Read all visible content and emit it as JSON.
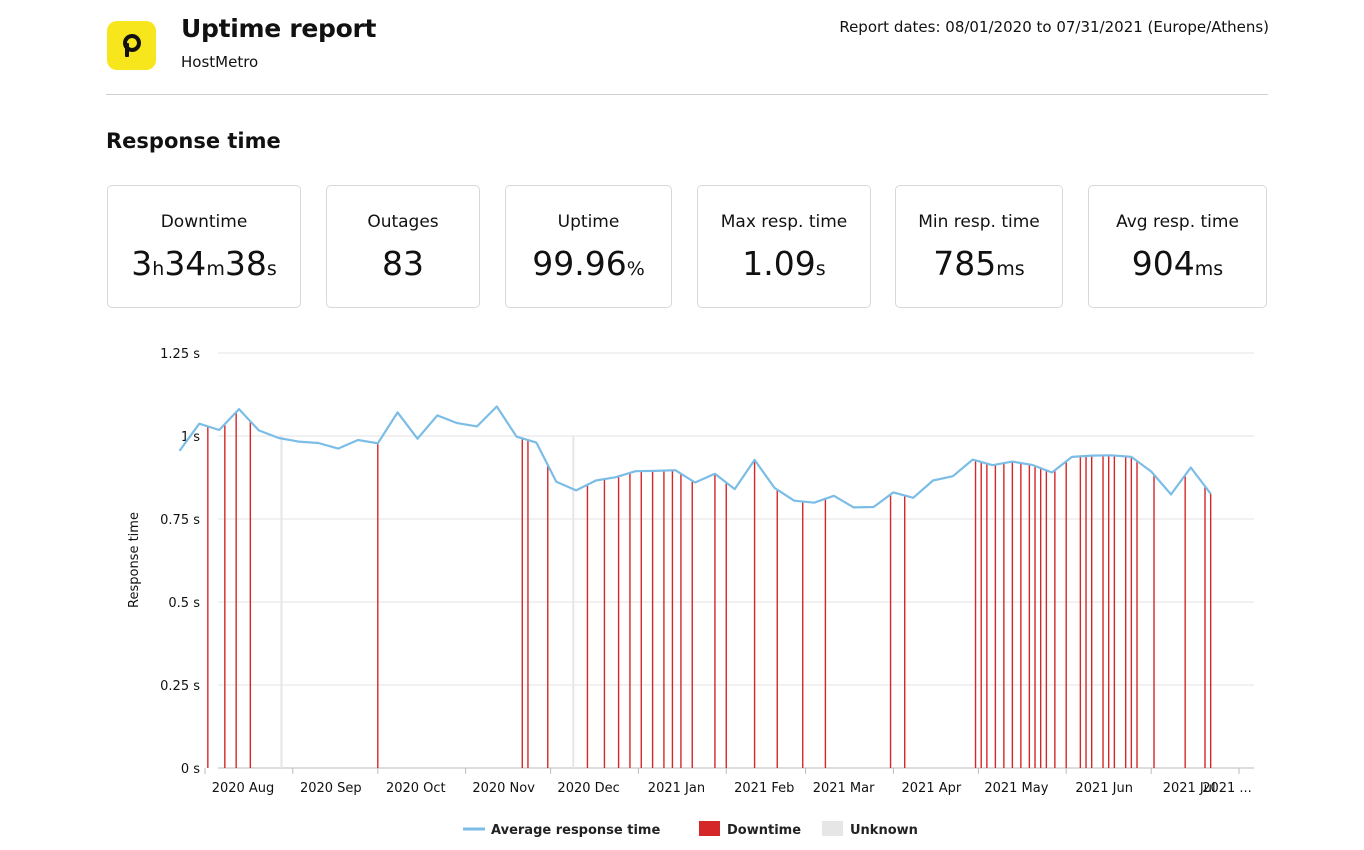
{
  "header": {
    "logo_letter": "p",
    "title": "Uptime report",
    "subtitle": "HostMetro",
    "dates": "Report dates: 08/01/2020 to 07/31/2021 (Europe/Athens)"
  },
  "section_title": "Response time",
  "stats": [
    {
      "label": "Downtime",
      "parts": [
        {
          "t": "3",
          "u": false
        },
        {
          "t": "h",
          "u": true
        },
        {
          "t": "34",
          "u": false
        },
        {
          "t": "m",
          "u": true
        },
        {
          "t": "38",
          "u": false
        },
        {
          "t": "s",
          "u": true
        }
      ]
    },
    {
      "label": "Outages",
      "parts": [
        {
          "t": "83",
          "u": false
        }
      ]
    },
    {
      "label": "Uptime",
      "parts": [
        {
          "t": "99.96",
          "u": false
        },
        {
          "t": "%",
          "u": true
        }
      ]
    },
    {
      "label": "Max resp. time",
      "parts": [
        {
          "t": "1.09",
          "u": false
        },
        {
          "t": "s",
          "u": true
        }
      ]
    },
    {
      "label": "Min resp. time",
      "parts": [
        {
          "t": "785",
          "u": false
        },
        {
          "t": "ms",
          "u": true
        }
      ]
    },
    {
      "label": "Avg resp. time",
      "parts": [
        {
          "t": "904",
          "u": false
        },
        {
          "t": "ms",
          "u": true
        }
      ]
    }
  ],
  "colors": {
    "line": "#7bbde6",
    "downtime": "#d62728",
    "unknown": "#e6e6e6",
    "logo": "#f6e61b"
  },
  "chart_data": {
    "type": "line",
    "ylabel": "Response time",
    "ylim": [
      0,
      1.25
    ],
    "y_ticks": [
      0,
      0.25,
      0.5,
      0.75,
      1,
      1.25
    ],
    "y_tick_labels": [
      "0  s",
      "0.25  s",
      "0.5  s",
      "0.75  s",
      "1  s",
      "1.25  s"
    ],
    "x_ticks": [
      "2020-08-01",
      "2020-09-01",
      "2020-10-01",
      "2020-11-01",
      "2020-12-01",
      "2021-01-01",
      "2021-02-01",
      "2021-03-01",
      "2021-04-01",
      "2021-05-01",
      "2021-06-01",
      "2021-07-01",
      "2021-08-01"
    ],
    "x_tick_labels": [
      "2020 Aug",
      "2020 Sep",
      "2020 Oct",
      "2020 Nov",
      "2020 Dec",
      "2021 Jan",
      "2021 Feb",
      "2021 Mar",
      "2021 Apr",
      "2021 May",
      "2021 Jun",
      "2021 Jul",
      "2021 ..."
    ],
    "series": [
      {
        "name": "Average response time",
        "x": [
          "2020-07-23",
          "2020-07-30",
          "2020-08-06",
          "2020-08-13",
          "2020-08-20",
          "2020-08-27",
          "2020-09-03",
          "2020-09-10",
          "2020-09-17",
          "2020-09-24",
          "2020-10-01",
          "2020-10-08",
          "2020-10-15",
          "2020-10-22",
          "2020-10-29",
          "2020-11-05",
          "2020-11-12",
          "2020-11-19",
          "2020-11-26",
          "2020-12-03",
          "2020-12-10",
          "2020-12-17",
          "2020-12-24",
          "2020-12-31",
          "2021-01-07",
          "2021-01-14",
          "2021-01-21",
          "2021-01-28",
          "2021-02-04",
          "2021-02-11",
          "2021-02-18",
          "2021-02-25",
          "2021-03-04",
          "2021-03-11",
          "2021-03-18",
          "2021-03-25",
          "2021-04-01",
          "2021-04-08",
          "2021-04-15",
          "2021-04-22",
          "2021-04-29",
          "2021-05-06",
          "2021-05-13",
          "2021-05-20",
          "2021-05-27",
          "2021-06-03",
          "2021-06-10",
          "2021-06-17",
          "2021-06-24",
          "2021-07-01",
          "2021-07-08",
          "2021-07-15",
          "2021-07-22"
        ],
        "values": [
          0.955,
          1.037,
          1.018,
          1.081,
          1.017,
          0.994,
          0.983,
          0.979,
          0.962,
          0.988,
          0.978,
          1.071,
          0.992,
          1.062,
          1.039,
          1.029,
          1.089,
          0.998,
          0.98,
          0.862,
          0.836,
          0.866,
          0.876,
          0.894,
          0.895,
          0.897,
          0.86,
          0.886,
          0.84,
          0.928,
          0.844,
          0.805,
          0.799,
          0.82,
          0.785,
          0.786,
          0.83,
          0.814,
          0.866,
          0.879,
          0.929,
          0.912,
          0.923,
          0.913,
          0.89,
          0.937,
          0.941,
          0.942,
          0.937,
          0.893,
          0.824,
          0.905,
          0.826
        ]
      }
    ],
    "downtime": [
      "2020-08-02",
      "2020-08-08",
      "2020-08-12",
      "2020-08-17",
      "2020-10-01",
      "2020-11-21",
      "2020-11-23",
      "2020-11-30",
      "2020-12-14",
      "2020-12-20",
      "2020-12-25",
      "2020-12-29",
      "2021-01-02",
      "2021-01-06",
      "2021-01-10",
      "2021-01-13",
      "2021-01-16",
      "2021-01-20",
      "2021-01-28",
      "2021-02-01",
      "2021-02-11",
      "2021-02-19",
      "2021-02-28",
      "2021-03-08",
      "2021-03-31",
      "2021-04-05",
      "2021-04-30",
      "2021-05-02",
      "2021-05-04",
      "2021-05-07",
      "2021-05-10",
      "2021-05-13",
      "2021-05-16",
      "2021-05-19",
      "2021-05-21",
      "2021-05-23",
      "2021-05-25",
      "2021-05-28",
      "2021-06-01",
      "2021-06-06",
      "2021-06-08",
      "2021-06-10",
      "2021-06-14",
      "2021-06-16",
      "2021-06-18",
      "2021-06-22",
      "2021-06-24",
      "2021-06-26",
      "2021-07-02",
      "2021-07-13",
      "2021-07-20",
      "2021-07-22"
    ],
    "unknown": [
      "2020-08-28",
      "2020-12-09"
    ],
    "legend": [
      {
        "label": "Average response time",
        "kind": "line"
      },
      {
        "label": "Downtime",
        "kind": "box"
      },
      {
        "label": "Unknown",
        "kind": "box"
      }
    ]
  }
}
